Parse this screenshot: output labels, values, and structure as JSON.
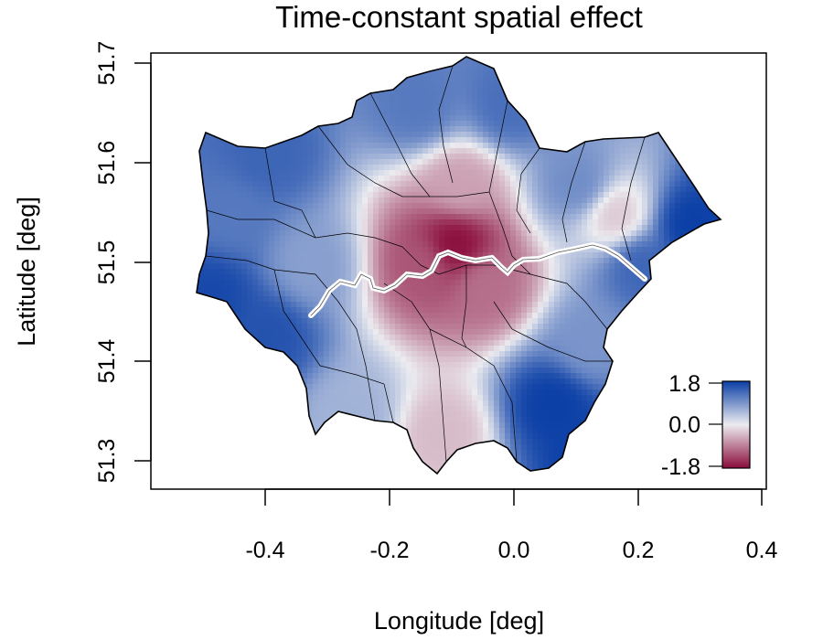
{
  "chart_data": {
    "type": "heatmap",
    "title": "Time-constant spatial effect",
    "xlabel": "Longitude [deg]",
    "ylabel": "Latitude [deg]",
    "xlim": [
      -0.56,
      0.4
    ],
    "ylim": [
      51.27,
      51.72
    ],
    "x_ticks": [
      -0.4,
      -0.2,
      0.0,
      0.2,
      0.4
    ],
    "x_tick_labels": [
      "-0.4",
      "-0.2",
      "0.0",
      "0.2",
      "0.4"
    ],
    "y_ticks": [
      51.3,
      51.4,
      51.5,
      51.6,
      51.7
    ],
    "y_tick_labels": [
      "51.3",
      "51.4",
      "51.5",
      "51.6",
      "51.7"
    ],
    "grid": false,
    "legend": {
      "position": "bottom-right",
      "min": -1.8,
      "max": 1.8,
      "labels": [
        "1.8",
        "0.0",
        "-1.8"
      ],
      "colors": {
        "high": "#0b3fa6",
        "mid": "#ececf0",
        "low": "#8a0c3a"
      }
    },
    "effect_field": [
      {
        "lon": -0.1,
        "lat": 51.52,
        "value": -1.8
      },
      {
        "lon": -0.15,
        "lat": 51.5,
        "value": -1.2
      },
      {
        "lon": -0.05,
        "lat": 51.48,
        "value": -1.0
      },
      {
        "lon": -0.09,
        "lat": 51.58,
        "value": -0.6
      },
      {
        "lon": -0.12,
        "lat": 51.33,
        "value": -0.4
      },
      {
        "lon": 0.16,
        "lat": 51.55,
        "value": -0.3
      },
      {
        "lon": -0.46,
        "lat": 51.55,
        "value": 1.2
      },
      {
        "lon": -0.4,
        "lat": 51.61,
        "value": 1.4
      },
      {
        "lon": -0.49,
        "lat": 51.47,
        "value": 1.7
      },
      {
        "lon": -0.4,
        "lat": 51.43,
        "value": 1.6
      },
      {
        "lon": 0.06,
        "lat": 51.36,
        "value": 1.8
      },
      {
        "lon": 0.12,
        "lat": 51.31,
        "value": 1.8
      },
      {
        "lon": 0.28,
        "lat": 51.54,
        "value": 1.8
      },
      {
        "lon": 0.2,
        "lat": 51.5,
        "value": 1.4
      },
      {
        "lon": -0.16,
        "lat": 51.66,
        "value": 1.2
      },
      {
        "lon": -0.01,
        "lat": 51.66,
        "value": 1.3
      },
      {
        "lon": 0.1,
        "lat": 51.58,
        "value": 1.0
      },
      {
        "lon": 0.12,
        "lat": 51.42,
        "value": 0.9
      },
      {
        "lon": -0.26,
        "lat": 51.35,
        "value": 0.6
      },
      {
        "lon": -0.33,
        "lat": 51.5,
        "value": 0.8
      }
    ]
  }
}
